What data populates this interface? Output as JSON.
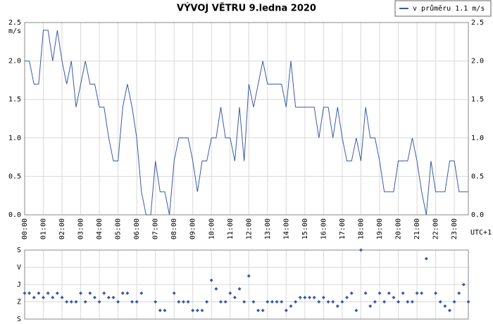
{
  "chart_data": [
    {
      "type": "line",
      "title": "VÝVOJ VĚTRU  9.ledna 2020",
      "y_unit": "m/s",
      "x_label": "UTC+1",
      "categories": [
        "00:00",
        null,
        null,
        null,
        "01:00",
        null,
        null,
        null,
        "02:00",
        null,
        null,
        null,
        "03:00",
        null,
        null,
        null,
        "04:00",
        null,
        null,
        null,
        "05:00",
        null,
        null,
        null,
        "06:00",
        null,
        null,
        null,
        "07:00",
        null,
        null,
        null,
        "08:00",
        null,
        null,
        null,
        "09:00",
        null,
        null,
        null,
        "10:00",
        null,
        null,
        null,
        "11:00",
        null,
        null,
        null,
        "12:00",
        null,
        null,
        null,
        "13:00",
        null,
        null,
        null,
        "14:00",
        null,
        null,
        null,
        "15:00",
        null,
        null,
        null,
        "16:00",
        null,
        null,
        null,
        "17:00",
        null,
        null,
        null,
        "18:00",
        null,
        null,
        null,
        "19:00",
        null,
        null,
        null,
        "20:00",
        null,
        null,
        null,
        "21:00",
        null,
        null,
        null,
        "22:00",
        null,
        null,
        null,
        "23:00",
        null,
        null,
        null
      ],
      "series": [
        {
          "name": "v průměru 1.1 m/s",
          "color": "#3a5aa8",
          "values": [
            2.0,
            2.0,
            1.7,
            1.7,
            2.4,
            2.4,
            2.0,
            2.4,
            2.0,
            1.7,
            2.0,
            1.4,
            1.7,
            2.0,
            1.7,
            1.7,
            1.4,
            1.4,
            1.0,
            0.7,
            0.7,
            1.4,
            1.7,
            1.4,
            1.0,
            0.3,
            0.0,
            0.0,
            0.7,
            0.3,
            0.3,
            0.0,
            0.7,
            1.0,
            1.0,
            1.0,
            0.7,
            0.3,
            0.7,
            0.7,
            1.0,
            1.0,
            1.4,
            1.0,
            1.0,
            0.7,
            1.4,
            0.7,
            1.7,
            1.4,
            1.7,
            2.0,
            1.7,
            1.7,
            1.7,
            1.7,
            1.4,
            2.0,
            1.4,
            1.4,
            1.4,
            1.4,
            1.4,
            1.0,
            1.4,
            1.4,
            1.0,
            1.4,
            1.0,
            0.7,
            0.7,
            1.0,
            0.7,
            1.4,
            1.0,
            1.0,
            0.7,
            0.3,
            0.3,
            0.3,
            0.7,
            0.7,
            0.7,
            1.0,
            0.7,
            0.3,
            0.0,
            0.7,
            0.3,
            0.3,
            0.3,
            0.7,
            0.7,
            0.3,
            0.3,
            0.3
          ]
        }
      ],
      "ylim": [
        0,
        2.5
      ],
      "yticks": [
        {
          "value": 0,
          "label": "0.0"
        },
        0.5,
        {
          "value": 1,
          "label": "1.0"
        },
        1.5,
        {
          "value": 2,
          "label": "2.0"
        },
        2.5
      ],
      "grid": true
    },
    {
      "type": "scatter",
      "color": "#3a5aa8",
      "values": [
        225,
        225,
        247.5,
        225,
        247.5,
        225,
        247.5,
        225,
        247.5,
        270,
        270,
        270,
        225,
        270,
        225,
        247.5,
        270,
        225,
        247.5,
        247.5,
        270,
        225,
        225,
        270,
        270,
        225,
        null,
        null,
        270,
        315,
        315,
        null,
        225,
        270,
        270,
        270,
        315,
        315,
        315,
        270,
        157.5,
        202.5,
        270,
        270,
        225,
        247.5,
        202.5,
        270,
        135,
        270,
        315,
        315,
        270,
        270,
        270,
        270,
        315,
        292.5,
        270,
        247.5,
        247.5,
        247.5,
        247.5,
        270,
        247.5,
        270,
        270,
        292.5,
        270,
        247.5,
        225,
        315,
        0,
        225,
        292.5,
        270,
        225,
        270,
        225,
        247.5,
        270,
        225,
        270,
        270,
        225,
        225,
        45,
        null,
        225,
        270,
        292.5,
        315,
        270,
        225,
        180,
        270
      ],
      "ylim": [
        360,
        0
      ],
      "yticks": [
        {
          "value": 0,
          "label": "S"
        },
        {
          "value": 90,
          "label": "V"
        },
        {
          "value": 180,
          "label": "J"
        },
        {
          "value": 270,
          "label": "Z"
        },
        {
          "value": 360,
          "label": "S"
        }
      ]
    }
  ]
}
